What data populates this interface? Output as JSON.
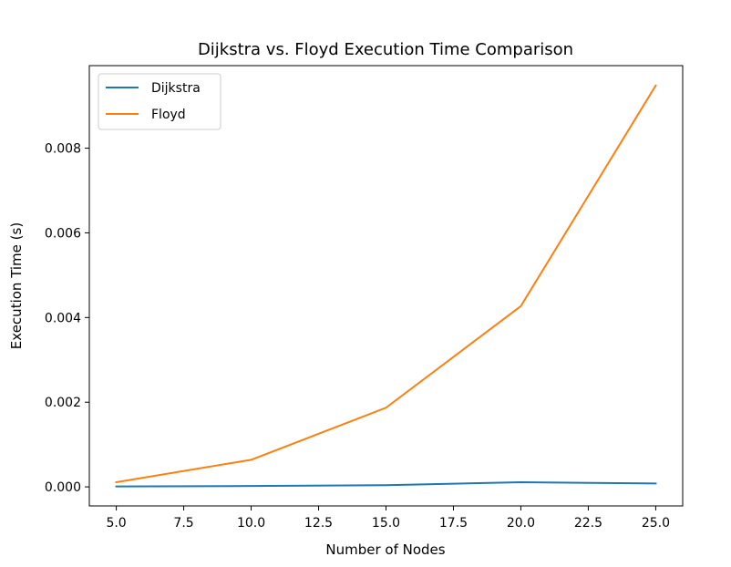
{
  "chart_data": {
    "type": "line",
    "title": "Dijkstra vs. Floyd Execution Time Comparison",
    "xlabel": "Number of Nodes",
    "ylabel": "Execution Time (s)",
    "x": [
      5,
      10,
      15,
      20,
      25
    ],
    "xlim": [
      4.0,
      26.0
    ],
    "ylim": [
      -0.00045,
      0.00995
    ],
    "x_ticks": [
      5.0,
      7.5,
      10.0,
      12.5,
      15.0,
      17.5,
      20.0,
      22.5,
      25.0
    ],
    "x_tick_labels": [
      "5.0",
      "7.5",
      "10.0",
      "12.5",
      "15.0",
      "17.5",
      "20.0",
      "22.5",
      "25.0"
    ],
    "y_ticks": [
      0.0,
      0.002,
      0.004,
      0.006,
      0.008
    ],
    "y_tick_labels": [
      "0.000",
      "0.002",
      "0.004",
      "0.006",
      "0.008"
    ],
    "grid": false,
    "legend_position": "upper-left",
    "series": [
      {
        "name": "Dijkstra",
        "color": "#1f77b4",
        "values": [
          1e-05,
          2e-05,
          4e-05,
          0.00011,
          8e-05
        ]
      },
      {
        "name": "Floyd",
        "color": "#ff7f0e",
        "values": [
          0.00011,
          0.00064,
          0.00187,
          0.00427,
          0.00948
        ]
      }
    ]
  }
}
